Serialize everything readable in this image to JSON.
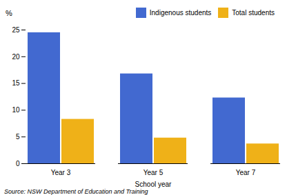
{
  "chart_data": {
    "type": "bar",
    "categories": [
      "Year 3",
      "Year 5",
      "Year 7"
    ],
    "series": [
      {
        "name": "Indigenous students",
        "values": [
          24.5,
          16.8,
          12.3
        ]
      },
      {
        "name": "Total students",
        "values": [
          8.3,
          4.8,
          3.7
        ]
      }
    ],
    "xlabel": "School year",
    "ylabel": "%",
    "ylim": [
      0,
      25
    ],
    "yticks": [
      0,
      5,
      10,
      15,
      20,
      25
    ],
    "legend": "upper right",
    "caption": "Source: NSW Department of Education and Training"
  }
}
